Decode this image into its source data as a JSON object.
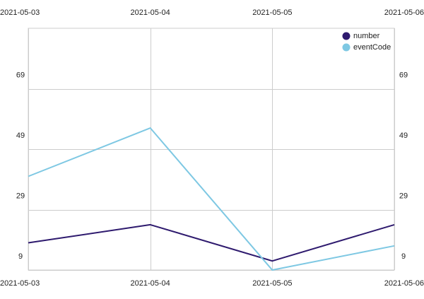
{
  "chart_data": {
    "type": "line",
    "title": "",
    "xlabel": "",
    "ylabel": "",
    "x": [
      "2021-05-03",
      "2021-05-04",
      "2021-05-05",
      "2021-05-06"
    ],
    "ylim": [
      9,
      89
    ],
    "yticks": [
      9,
      29,
      49,
      69
    ],
    "grid": true,
    "legend_position": "top-right",
    "series": [
      {
        "name": "number",
        "color": "#2e1a6e",
        "values": [
          18,
          24,
          12,
          24
        ]
      },
      {
        "name": "eventCode",
        "color": "#7ec8e3",
        "values": [
          40,
          56,
          9,
          17
        ]
      }
    ]
  },
  "colors": {
    "grid": "#cccccc",
    "axis_text": "#222222",
    "background": "#ffffff"
  }
}
